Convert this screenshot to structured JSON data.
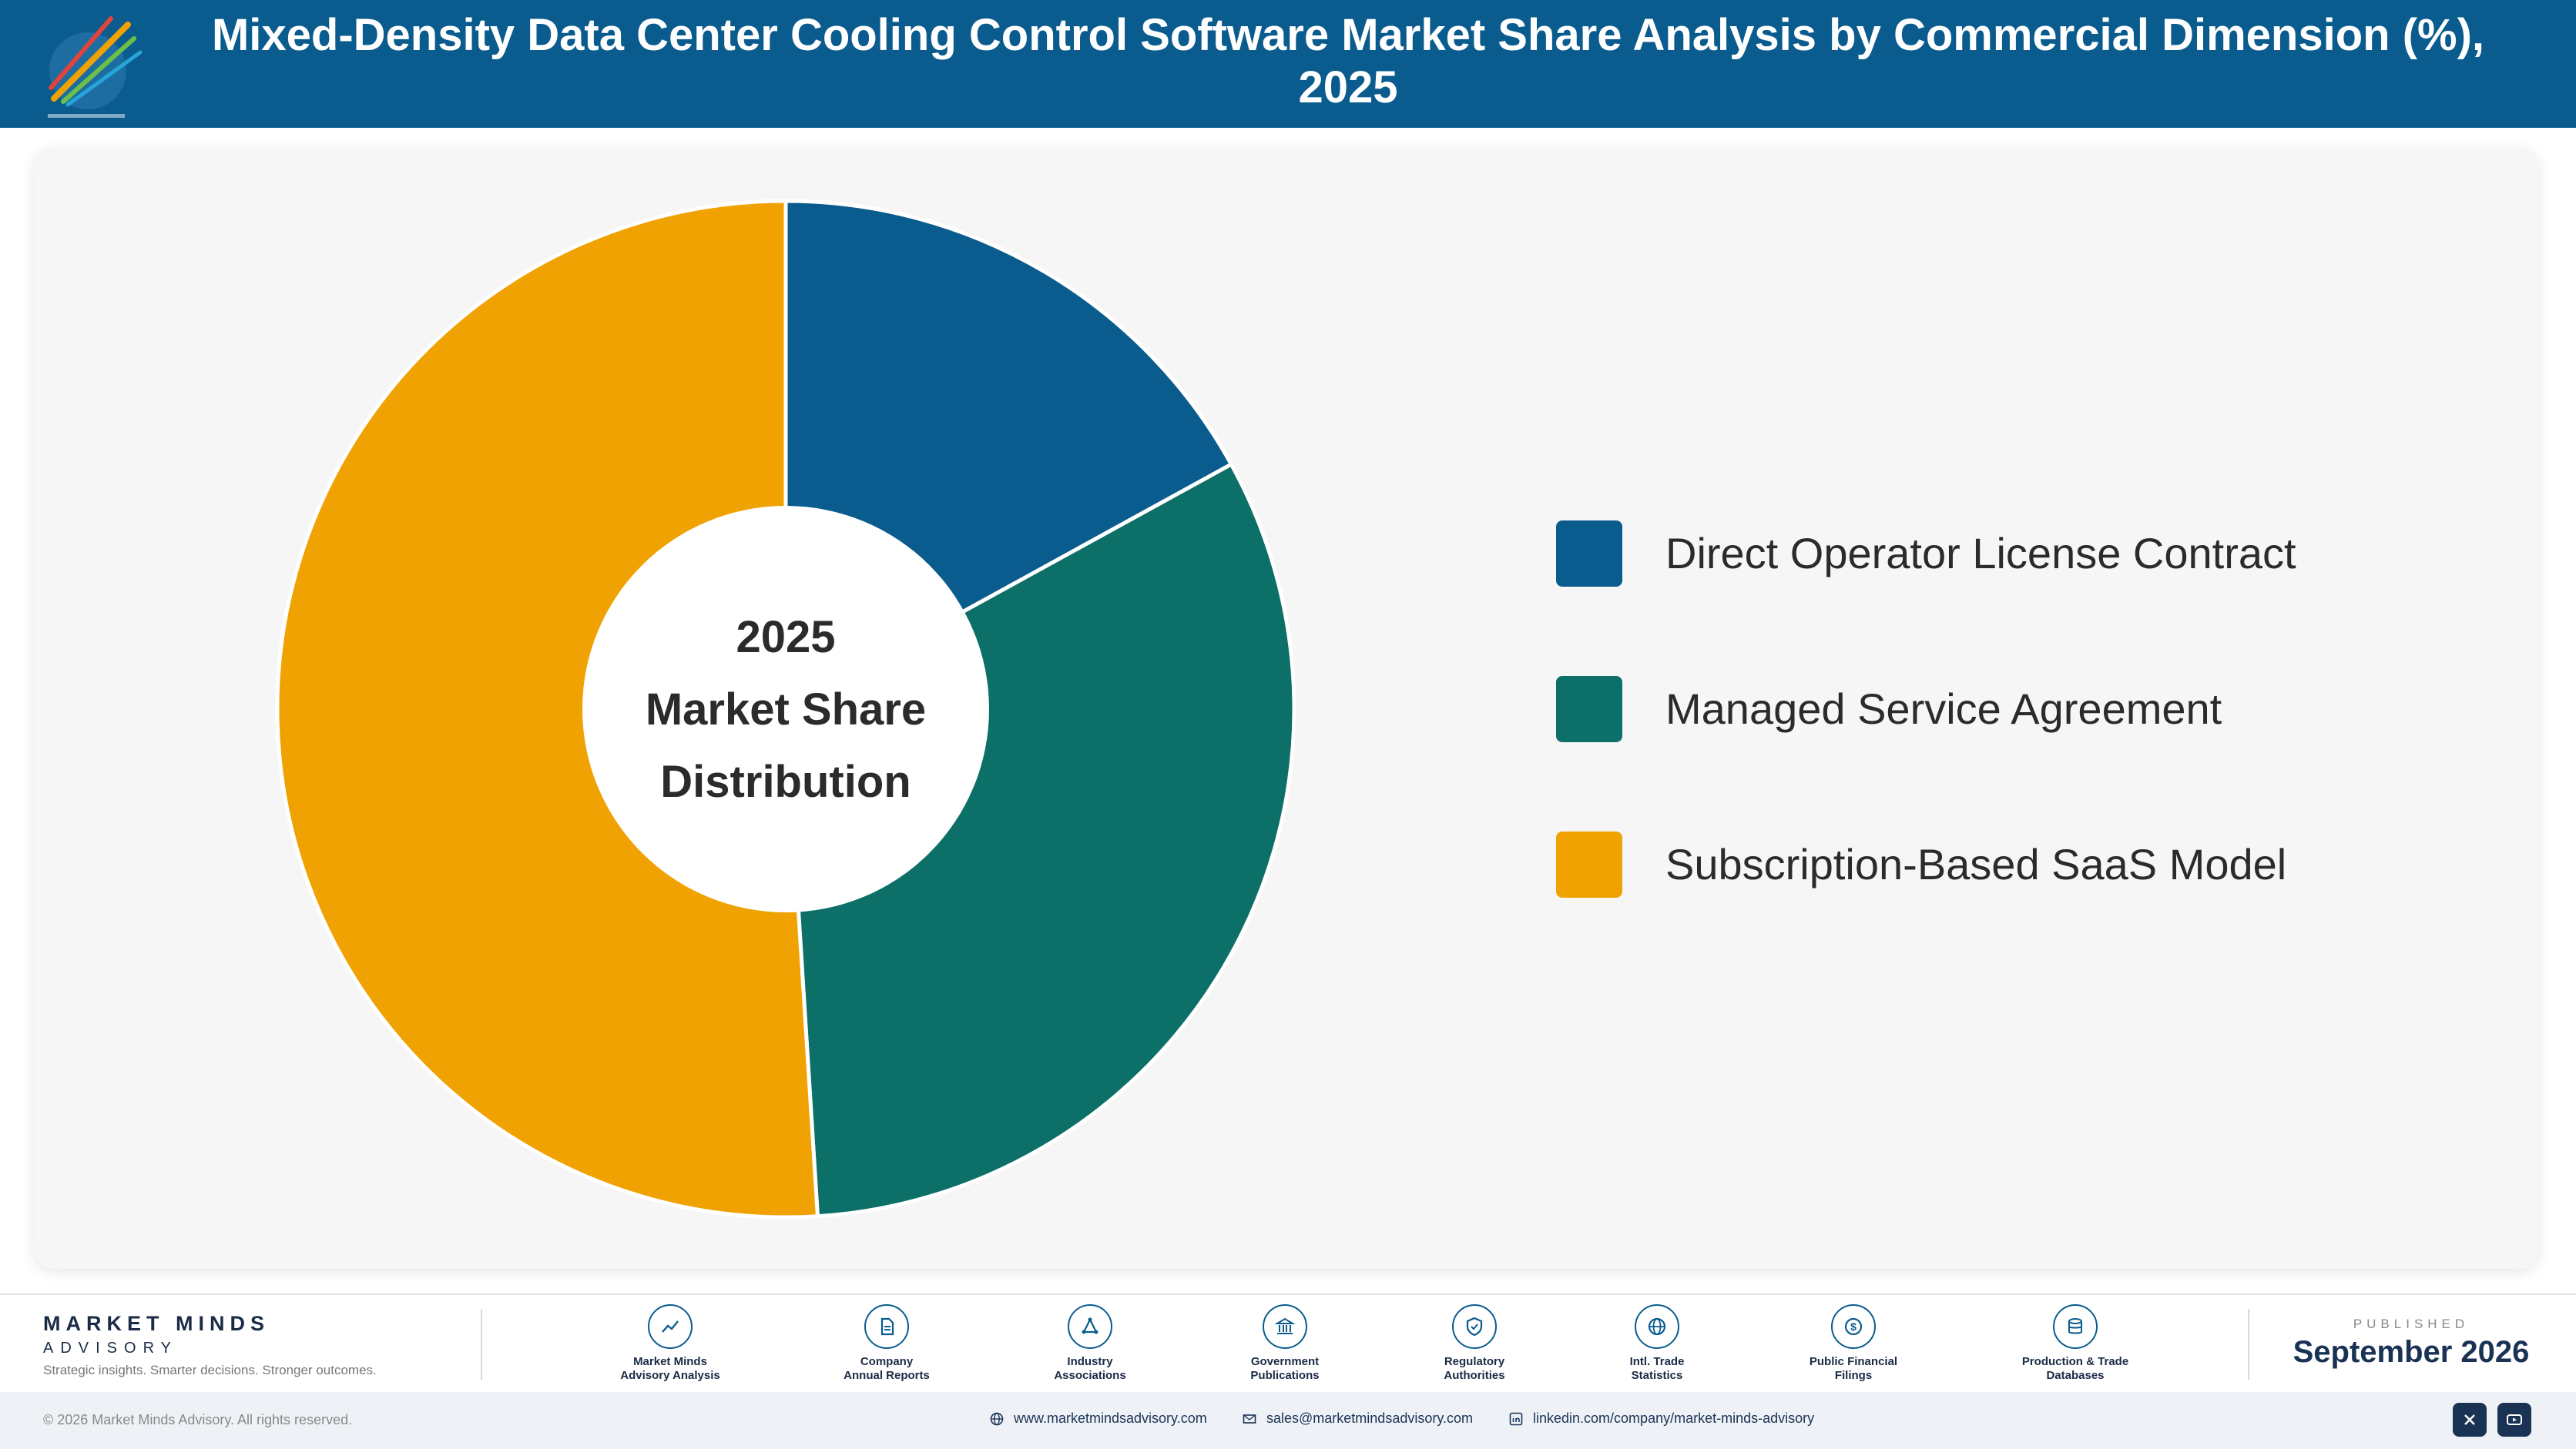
{
  "header": {
    "title": "Mixed-Density Data Center Cooling Control Software Market Share Analysis by Commercial Dimension (%), 2025"
  },
  "chart_data": {
    "type": "pie",
    "style": "donut",
    "center_label": [
      "2025",
      "Market Share",
      "Distribution"
    ],
    "categories": [
      "Direct Operator License Contract",
      "Managed Service Agreement",
      "Subscription-Based SaaS Model"
    ],
    "values": [
      17,
      32,
      51
    ],
    "colors": [
      "#0a5c8e",
      "#0c7068",
      "#f0a202"
    ],
    "legend_position": "right"
  },
  "footer": {
    "brand_name": "MARKET MINDS",
    "brand_sub": "ADVISORY",
    "tagline": "Strategic insights. Smarter decisions. Stronger outcomes.",
    "sources": [
      {
        "line1": "Market Minds",
        "line2": "Advisory Analysis",
        "icon": "trend-icon"
      },
      {
        "line1": "Company",
        "line2": "Annual Reports",
        "icon": "document-icon"
      },
      {
        "line1": "Industry",
        "line2": "Associations",
        "icon": "network-icon"
      },
      {
        "line1": "Government",
        "line2": "Publications",
        "icon": "bank-icon"
      },
      {
        "line1": "Regulatory",
        "line2": "Authorities",
        "icon": "shield-icon"
      },
      {
        "line1": "Intl. Trade",
        "line2": "Statistics",
        "icon": "globe-icon"
      },
      {
        "line1": "Public Financial",
        "line2": "Filings",
        "icon": "coin-icon"
      },
      {
        "line1": "Production & Trade",
        "line2": "Databases",
        "icon": "database-icon"
      }
    ],
    "published_label": "PUBLISHED",
    "published_date": "September 2026"
  },
  "bottom": {
    "copyright": "© 2026 Market Minds Advisory. All rights reserved.",
    "website": "www.marketmindsadvisory.com",
    "email": "sales@marketmindsadvisory.com",
    "linkedin": "linkedin.com/company/market-minds-advisory"
  }
}
